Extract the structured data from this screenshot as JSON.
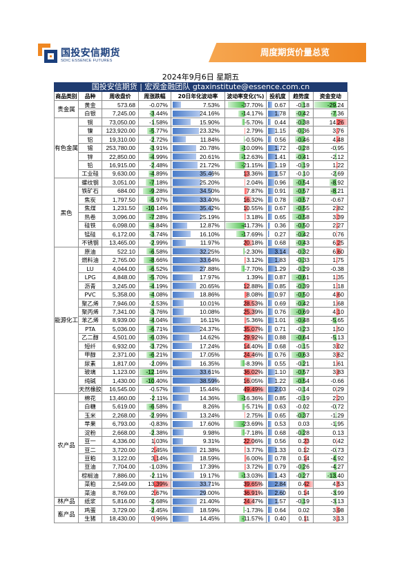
{
  "brand": {
    "name_cn": "国投安信期货",
    "name_en": "SDIC ESSENCE FUTURES"
  },
  "banner_title": "周度期货价量总览",
  "report_date": "2024年9月6日 星期五",
  "team_bar": "国投安信期货 | 宏观金融团队 gtaxinstitute@essence.com.cn",
  "colors": {
    "banner": "#ef8722",
    "team_bar": "#1f3b70",
    "brand_text": "#1b3f7c",
    "positive_bar": "#ff4f4f",
    "negative_bar": "#4fc24f",
    "blue_bar": "#4a7cc9"
  },
  "columns": [
    "商品类别",
    "品种",
    "周收盘价",
    "周涨跌幅",
    "20日年化波动率",
    "波动率变化(%)",
    "投机度",
    "趋势度",
    "资金变动"
  ],
  "groups": [
    {
      "category": "贵金属",
      "rows": [
        {
          "name": "黄金",
          "close": "573.68",
          "chg": "-0.07%",
          "vol": "7.53%",
          "vol_chg": "-37.70%",
          "spec": "0.67",
          "trend": "-0.18",
          "flow": "-29.24"
        },
        {
          "name": "白银",
          "close": "7,245.00",
          "chg": "-3.44%",
          "vol": "24.16%",
          "vol_chg": "-14.17%",
          "spec": "1.78",
          "trend": "-0.42",
          "flow": "-7.36"
        }
      ]
    },
    {
      "category": "有色金属",
      "rows": [
        {
          "name": "铜",
          "close": "73,050.00",
          "chg": "-1.58%",
          "vol": "15.90%",
          "vol_chg": "-5.70%",
          "spec": "0.44",
          "trend": "-0.38",
          "flow": "14.26"
        },
        {
          "name": "镍",
          "close": "123,920.00",
          "chg": "-5.77%",
          "vol": "23.32%",
          "vol_chg": "2.79%",
          "spec": "1.15",
          "trend": "-0.36",
          "flow": "3.76"
        },
        {
          "name": "铝",
          "close": "19,310.00",
          "chg": "-2.72%",
          "vol": "11.84%",
          "vol_chg": "-0.50%",
          "spec": "0.56",
          "trend": "-0.46",
          "flow": "4.48"
        },
        {
          "name": "锡",
          "close": "253,780.00",
          "chg": "-3.91%",
          "vol": "20.78%",
          "vol_chg": "-10.09%",
          "spec": "1.72",
          "trend": "-0.28",
          "flow": "-0.95"
        },
        {
          "name": "锌",
          "close": "22,850.00",
          "chg": "-4.99%",
          "vol": "20.61%",
          "vol_chg": "-12.63%",
          "spec": "1.41",
          "trend": "-0.41",
          "flow": "-2.12"
        },
        {
          "name": "铅",
          "close": "16,915.00",
          "chg": "-2.48%",
          "vol": "21.72%",
          "vol_chg": "-21.15%",
          "spec": "1.19",
          "trend": "-0.19",
          "flow": "1.22"
        },
        {
          "name": "工业硅",
          "close": "9,630.00",
          "chg": "-4.89%",
          "vol": "35.46%",
          "vol_chg": "13.36%",
          "spec": "1.57",
          "trend": "-0.10",
          "flow": "-2.69"
        }
      ]
    },
    {
      "category": "黑色",
      "rows": [
        {
          "name": "螺纹钢",
          "close": "3,051.00",
          "chg": "-7.18%",
          "vol": "25.20%",
          "vol_chg": "2.04%",
          "spec": "0.96",
          "trend": "-0.54",
          "flow": "-8.92"
        },
        {
          "name": "铁矿石",
          "close": "684.00",
          "chg": "-9.28%",
          "vol": "34.50%",
          "vol_chg": "7.87%",
          "spec": "0.91",
          "trend": "-0.57",
          "flow": "-8.21"
        },
        {
          "name": "焦炭",
          "close": "1,797.50",
          "chg": "-5.97%",
          "vol": "33.40%",
          "vol_chg": "16.32%",
          "spec": "0.78",
          "trend": "-0.57",
          "flow": "-0.67"
        },
        {
          "name": "焦煤",
          "close": "1,231.50",
          "chg": "-10.14%",
          "vol": "35.42%",
          "vol_chg": "10.55%",
          "spec": "0.67",
          "trend": "-0.55",
          "flow": "2.82"
        },
        {
          "name": "热卷",
          "close": "3,096.00",
          "chg": "-7.28%",
          "vol": "25.19%",
          "vol_chg": "3.18%",
          "spec": "0.65",
          "trend": "-0.58",
          "flow": "3.39"
        },
        {
          "name": "硅铁",
          "close": "6,098.00",
          "chg": "-4.84%",
          "vol": "12.87%",
          "vol_chg": "-41.73%",
          "spec": "0.36",
          "trend": "-0.50",
          "flow": "2.27"
        },
        {
          "name": "锰硅",
          "close": "6,172.00",
          "chg": "-3.74%",
          "vol": "16.10%",
          "vol_chg": "-17.69%",
          "spec": "0.27",
          "trend": "-0.42",
          "flow": "0.76"
        },
        {
          "name": "不锈钢",
          "close": "13,465.00",
          "chg": "-2.99%",
          "vol": "11.97%",
          "vol_chg": "20.18%",
          "spec": "0.68",
          "trend": "-0.43",
          "flow": "6.25"
        }
      ]
    },
    {
      "category": "能源化工",
      "rows": [
        {
          "name": "原油",
          "close": "522.10",
          "chg": "-6.58%",
          "vol": "32.25%",
          "vol_chg": "-2.30%",
          "spec": "3.14",
          "trend": "-0.32",
          "flow": "6.60"
        },
        {
          "name": "燃料油",
          "close": "2,765.00",
          "chg": "-8.66%",
          "vol": "33.64%",
          "vol_chg": "3.12%",
          "spec": "1.83",
          "trend": "-0.33",
          "flow": "1.75"
        },
        {
          "name": "LU",
          "close": "4,044.00",
          "chg": "-6.52%",
          "vol": "27.88%",
          "vol_chg": "-7.70%",
          "spec": "1.29",
          "trend": "-0.29",
          "flow": "-0.38"
        },
        {
          "name": "LPG",
          "close": "4,848.00",
          "chg": "-5.70%",
          "vol": "17.97%",
          "vol_chg": "1.39%",
          "spec": "0.87",
          "trend": "-0.61",
          "flow": "1.35"
        },
        {
          "name": "沥青",
          "close": "3,245.00",
          "chg": "-4.19%",
          "vol": "20.65%",
          "vol_chg": "12.88%",
          "spec": "0.85",
          "trend": "-0.39",
          "flow": "1.18"
        },
        {
          "name": "PVC",
          "close": "5,358.00",
          "chg": "-4.08%",
          "vol": "18.86%",
          "vol_chg": "8.08%",
          "spec": "0.97",
          "trend": "-0.50",
          "flow": "4.60"
        },
        {
          "name": "聚乙烯",
          "close": "7,946.00",
          "chg": "-2.53%",
          "vol": "10.01%",
          "vol_chg": "28.53%",
          "spec": "0.69",
          "trend": "-0.42",
          "flow": "1.68"
        },
        {
          "name": "聚丙烯",
          "close": "7,341.00",
          "chg": "-3.76%",
          "vol": "10.08%",
          "vol_chg": "25.39%",
          "spec": "0.76",
          "trend": "-0.69",
          "flow": "4.10"
        },
        {
          "name": "苯乙烯",
          "close": "8,939.00",
          "chg": "-4.04%",
          "vol": "16.11%",
          "vol_chg": "5.36%",
          "spec": "1.01",
          "trend": "-0.48",
          "flow": "-5.65"
        },
        {
          "name": "PTA",
          "close": "5,036.00",
          "chg": "-6.71%",
          "vol": "24.37%",
          "vol_chg": "35.07%",
          "spec": "0.71",
          "trend": "-0.23",
          "flow": "1.50"
        },
        {
          "name": "乙二醇",
          "close": "4,501.00",
          "chg": "-6.03%",
          "vol": "14.62%",
          "vol_chg": "29.92%",
          "spec": "0.88",
          "trend": "-0.64",
          "flow": "-5.13"
        },
        {
          "name": "短纤",
          "close": "6,932.00",
          "chg": "-3.72%",
          "vol": "17.24%",
          "vol_chg": "14.40%",
          "spec": "0.68",
          "trend": "-0.15",
          "flow": "3.02"
        },
        {
          "name": "甲醇",
          "close": "2,371.00",
          "chg": "-6.21%",
          "vol": "17.05%",
          "vol_chg": "24.46%",
          "spec": "0.76",
          "trend": "-0.63",
          "flow": "3.62"
        },
        {
          "name": "尿素",
          "close": "1,817.00",
          "chg": "-2.09%",
          "vol": "16.35%",
          "vol_chg": "-8.39%",
          "spec": "0.55",
          "trend": "-0.21",
          "flow": "1.61"
        },
        {
          "name": "玻璃",
          "close": "1,123.00",
          "chg": "-12.16%",
          "vol": "33.61%",
          "vol_chg": "36.02%",
          "spec": "1.10",
          "trend": "-0.57",
          "flow": "3.83"
        },
        {
          "name": "纯碱",
          "close": "1,430.00",
          "chg": "-10.40%",
          "vol": "38.59%",
          "vol_chg": "16.05%",
          "spec": "1.22",
          "trend": "-0.54",
          "flow": "-0.66"
        },
        {
          "name": "天然橡胶",
          "close": "16,545.00",
          "chg": "-0.57%",
          "vol": "15.44%",
          "vol_chg": "49.49%",
          "spec": "2.03",
          "trend": "-0.14",
          "flow": "0.29"
        }
      ]
    },
    {
      "category": "农产品",
      "rows": [
        {
          "name": "棉花",
          "close": "13,460.00",
          "chg": "-2.11%",
          "vol": "14.36%",
          "vol_chg": "-16.36%",
          "spec": "0.85",
          "trend": "-0.19",
          "flow": "2.20"
        },
        {
          "name": "白糖",
          "close": "5,619.00",
          "chg": "-6.58%",
          "vol": "8.26%",
          "vol_chg": "-5.71%",
          "spec": "0.63",
          "trend": "-0.02",
          "flow": "-0.72"
        },
        {
          "name": "玉米",
          "close": "2,268.00",
          "chg": "-2.99%",
          "vol": "13.24%",
          "vol_chg": "2.75%",
          "spec": "0.65",
          "trend": "-0.37",
          "flow": "-1.29"
        },
        {
          "name": "苹果",
          "close": "6,793.00",
          "chg": "-0.83%",
          "vol": "17.60%",
          "vol_chg": "-23.69%",
          "spec": "0.53",
          "trend": "0.03",
          "flow": "-1.95"
        },
        {
          "name": "淀粉",
          "close": "2,668.00",
          "chg": "-2.38%",
          "vol": "9.98%",
          "vol_chg": "-7.18%",
          "spec": "0.68",
          "trend": "-0.28",
          "flow": "0.13"
        },
        {
          "name": "豆一",
          "close": "4,336.00",
          "chg": "1.03%",
          "vol": "9.31%",
          "vol_chg": "22.06%",
          "spec": "0.56",
          "trend": "0.23",
          "flow": "0.42"
        },
        {
          "name": "豆二",
          "close": "3,720.00",
          "chg": "2.45%",
          "vol": "21.38%",
          "vol_chg": "3.77%",
          "spec": "1.33",
          "trend": "0.12",
          "flow": "-0.73"
        },
        {
          "name": "豆粕",
          "close": "3,122.00",
          "chg": "3.14%",
          "vol": "18.59%",
          "vol_chg": "6.00%",
          "spec": "0.78",
          "trend": "0.14",
          "flow": "-4.92"
        },
        {
          "name": "豆油",
          "close": "7,704.00",
          "chg": "-1.03%",
          "vol": "17.39%",
          "vol_chg": "3.72%",
          "spec": "0.79",
          "trend": "-0.26",
          "flow": "-4.27"
        },
        {
          "name": "棕榈油",
          "close": "7,886.00",
          "chg": "-2.11%",
          "vol": "19.17%",
          "vol_chg": "-13.03%",
          "spec": "1.43",
          "trend": "-0.27",
          "flow": "-13.40"
        },
        {
          "name": "菜粕",
          "close": "2,549.00",
          "chg": "13.39%",
          "vol": "33.71%",
          "vol_chg": "39.65%",
          "spec": "2.84",
          "trend": "0.42",
          "flow": "4.53"
        },
        {
          "name": "菜油",
          "close": "8,769.00",
          "chg": "2.67%",
          "vol": "29.00%",
          "vol_chg": "36.91%",
          "spec": "2.60",
          "trend": "0.14",
          "flow": "-3.99"
        }
      ]
    },
    {
      "category": "林产品",
      "rows": [
        {
          "name": "纸浆",
          "close": "5,816.00",
          "chg": "-2.68%",
          "vol": "21.40%",
          "vol_chg": "24.47%",
          "spec": "1.57",
          "trend": "-0.19",
          "flow": "-3.13"
        }
      ]
    },
    {
      "category": "畜产品",
      "rows": [
        {
          "name": "鸡蛋",
          "close": "3,729.00",
          "chg": "-2.45%",
          "vol": "18.59%",
          "vol_chg": "-1.73%",
          "spec": "0.64",
          "trend": "0.02",
          "flow": "3.98"
        },
        {
          "name": "生猪",
          "close": "18,430.00",
          "chg": "0.96%",
          "vol": "14.45%",
          "vol_chg": "-11.57%",
          "spec": "0.40",
          "trend": "0.11",
          "flow": "3.13"
        }
      ]
    }
  ]
}
